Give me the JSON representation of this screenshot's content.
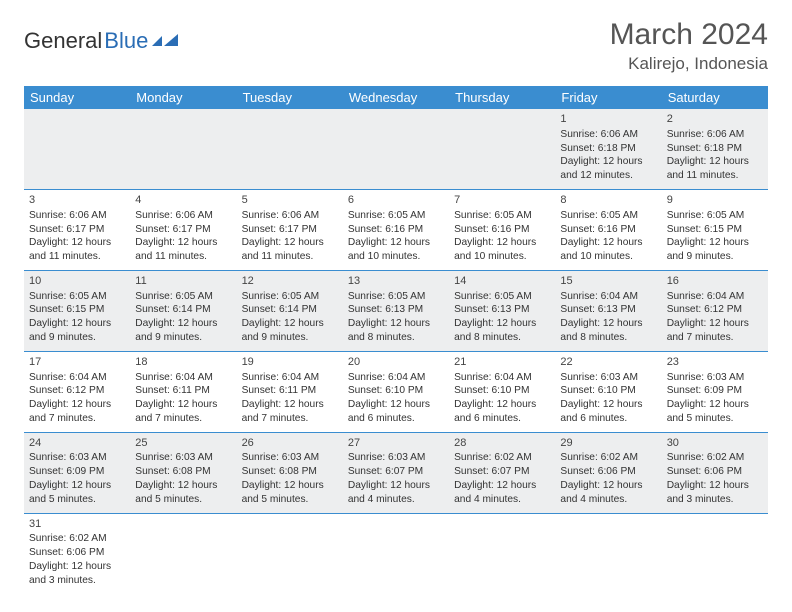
{
  "logo": {
    "text1": "General",
    "text2": "Blue"
  },
  "title": "March 2024",
  "location": "Kalirejo, Indonesia",
  "colors": {
    "header_bg": "#3a8dd0",
    "header_text": "#ffffff",
    "row_border": "#3a8dd0",
    "row_alt_bg": "#edeeef",
    "row_bg": "#ffffff",
    "text": "#333333",
    "title_text": "#555555",
    "logo_blue": "#2a6db5"
  },
  "weekdays": [
    "Sunday",
    "Monday",
    "Tuesday",
    "Wednesday",
    "Thursday",
    "Friday",
    "Saturday"
  ],
  "weeks": [
    [
      null,
      null,
      null,
      null,
      null,
      {
        "d": "1",
        "sr": "6:06 AM",
        "ss": "6:18 PM",
        "dl": "12 hours and 12 minutes."
      },
      {
        "d": "2",
        "sr": "6:06 AM",
        "ss": "6:18 PM",
        "dl": "12 hours and 11 minutes."
      }
    ],
    [
      {
        "d": "3",
        "sr": "6:06 AM",
        "ss": "6:17 PM",
        "dl": "12 hours and 11 minutes."
      },
      {
        "d": "4",
        "sr": "6:06 AM",
        "ss": "6:17 PM",
        "dl": "12 hours and 11 minutes."
      },
      {
        "d": "5",
        "sr": "6:06 AM",
        "ss": "6:17 PM",
        "dl": "12 hours and 11 minutes."
      },
      {
        "d": "6",
        "sr": "6:05 AM",
        "ss": "6:16 PM",
        "dl": "12 hours and 10 minutes."
      },
      {
        "d": "7",
        "sr": "6:05 AM",
        "ss": "6:16 PM",
        "dl": "12 hours and 10 minutes."
      },
      {
        "d": "8",
        "sr": "6:05 AM",
        "ss": "6:16 PM",
        "dl": "12 hours and 10 minutes."
      },
      {
        "d": "9",
        "sr": "6:05 AM",
        "ss": "6:15 PM",
        "dl": "12 hours and 9 minutes."
      }
    ],
    [
      {
        "d": "10",
        "sr": "6:05 AM",
        "ss": "6:15 PM",
        "dl": "12 hours and 9 minutes."
      },
      {
        "d": "11",
        "sr": "6:05 AM",
        "ss": "6:14 PM",
        "dl": "12 hours and 9 minutes."
      },
      {
        "d": "12",
        "sr": "6:05 AM",
        "ss": "6:14 PM",
        "dl": "12 hours and 9 minutes."
      },
      {
        "d": "13",
        "sr": "6:05 AM",
        "ss": "6:13 PM",
        "dl": "12 hours and 8 minutes."
      },
      {
        "d": "14",
        "sr": "6:05 AM",
        "ss": "6:13 PM",
        "dl": "12 hours and 8 minutes."
      },
      {
        "d": "15",
        "sr": "6:04 AM",
        "ss": "6:13 PM",
        "dl": "12 hours and 8 minutes."
      },
      {
        "d": "16",
        "sr": "6:04 AM",
        "ss": "6:12 PM",
        "dl": "12 hours and 7 minutes."
      }
    ],
    [
      {
        "d": "17",
        "sr": "6:04 AM",
        "ss": "6:12 PM",
        "dl": "12 hours and 7 minutes."
      },
      {
        "d": "18",
        "sr": "6:04 AM",
        "ss": "6:11 PM",
        "dl": "12 hours and 7 minutes."
      },
      {
        "d": "19",
        "sr": "6:04 AM",
        "ss": "6:11 PM",
        "dl": "12 hours and 7 minutes."
      },
      {
        "d": "20",
        "sr": "6:04 AM",
        "ss": "6:10 PM",
        "dl": "12 hours and 6 minutes."
      },
      {
        "d": "21",
        "sr": "6:04 AM",
        "ss": "6:10 PM",
        "dl": "12 hours and 6 minutes."
      },
      {
        "d": "22",
        "sr": "6:03 AM",
        "ss": "6:10 PM",
        "dl": "12 hours and 6 minutes."
      },
      {
        "d": "23",
        "sr": "6:03 AM",
        "ss": "6:09 PM",
        "dl": "12 hours and 5 minutes."
      }
    ],
    [
      {
        "d": "24",
        "sr": "6:03 AM",
        "ss": "6:09 PM",
        "dl": "12 hours and 5 minutes."
      },
      {
        "d": "25",
        "sr": "6:03 AM",
        "ss": "6:08 PM",
        "dl": "12 hours and 5 minutes."
      },
      {
        "d": "26",
        "sr": "6:03 AM",
        "ss": "6:08 PM",
        "dl": "12 hours and 5 minutes."
      },
      {
        "d": "27",
        "sr": "6:03 AM",
        "ss": "6:07 PM",
        "dl": "12 hours and 4 minutes."
      },
      {
        "d": "28",
        "sr": "6:02 AM",
        "ss": "6:07 PM",
        "dl": "12 hours and 4 minutes."
      },
      {
        "d": "29",
        "sr": "6:02 AM",
        "ss": "6:06 PM",
        "dl": "12 hours and 4 minutes."
      },
      {
        "d": "30",
        "sr": "6:02 AM",
        "ss": "6:06 PM",
        "dl": "12 hours and 3 minutes."
      }
    ],
    [
      {
        "d": "31",
        "sr": "6:02 AM",
        "ss": "6:06 PM",
        "dl": "12 hours and 3 minutes."
      },
      null,
      null,
      null,
      null,
      null,
      null
    ]
  ],
  "labels": {
    "sunrise": "Sunrise:",
    "sunset": "Sunset:",
    "daylight": "Daylight:"
  }
}
